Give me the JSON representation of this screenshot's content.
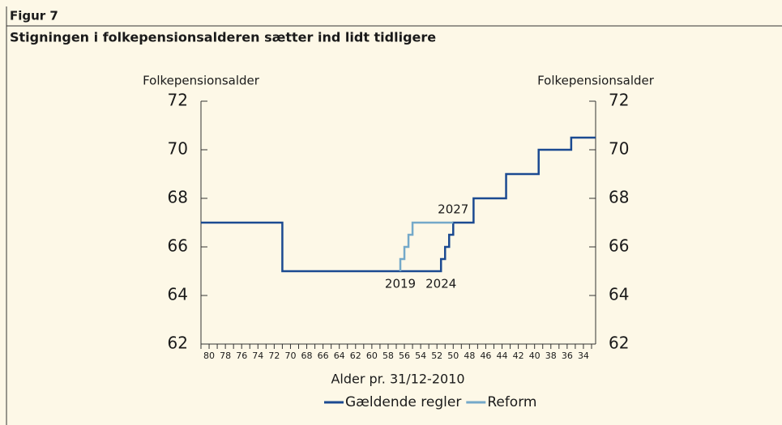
{
  "chart_data": {
    "type": "step-line",
    "header": "Figur 7",
    "title": "Stigningen i folkepensionsalderen sætter ind lidt tidligere",
    "ylabel": "Folkepensionsalder",
    "y2label": "Folkepensionsalder",
    "xlabel": "Alder pr. 31/12-2010",
    "xlim": [
      81,
      32.5
    ],
    "xticks": [
      80,
      78,
      76,
      74,
      72,
      70,
      68,
      66,
      64,
      62,
      60,
      58,
      56,
      54,
      52,
      50,
      48,
      46,
      44,
      42,
      40,
      38,
      36,
      34
    ],
    "xminorticks": [
      81,
      79,
      77,
      75,
      73,
      71,
      69,
      67,
      65,
      63,
      61,
      59,
      57,
      55,
      53,
      51,
      49,
      47,
      45,
      43,
      41,
      39,
      37,
      35,
      33
    ],
    "ylim": [
      62,
      72
    ],
    "yticks": [
      62,
      64,
      66,
      68,
      70,
      72
    ],
    "y2lim": [
      62,
      72
    ],
    "y2ticks": [
      62,
      64,
      66,
      68,
      70,
      72
    ],
    "series": [
      {
        "name": "Gældende regler",
        "color": "#1b4a91",
        "x": [
          81,
          71,
          71,
          51.5,
          51.5,
          51,
          51,
          50.5,
          50.5,
          50,
          50,
          47.5,
          47.5,
          43.5,
          43.5,
          39.5,
          39.5,
          35.5,
          35.5,
          32.5
        ],
        "values": [
          67,
          67,
          65,
          65,
          65.5,
          65.5,
          66,
          66,
          66.5,
          66.5,
          67,
          67,
          68,
          68,
          69,
          69,
          70,
          70,
          70.5,
          70.5
        ]
      },
      {
        "name": "Reform",
        "color": "#74a9c9",
        "x": [
          56.5,
          56.5,
          56,
          56,
          55.5,
          55.5,
          55,
          55,
          50
        ],
        "values": [
          65,
          65.5,
          65.5,
          66,
          66,
          66.5,
          66.5,
          67,
          67
        ]
      }
    ],
    "annotations": [
      {
        "text": "2019",
        "x": 56.5,
        "y": 65,
        "position": "below"
      },
      {
        "text": "2024",
        "x": 51.5,
        "y": 65,
        "position": "below"
      },
      {
        "text": "2027",
        "x": 50,
        "y": 67,
        "position": "above"
      }
    ]
  }
}
